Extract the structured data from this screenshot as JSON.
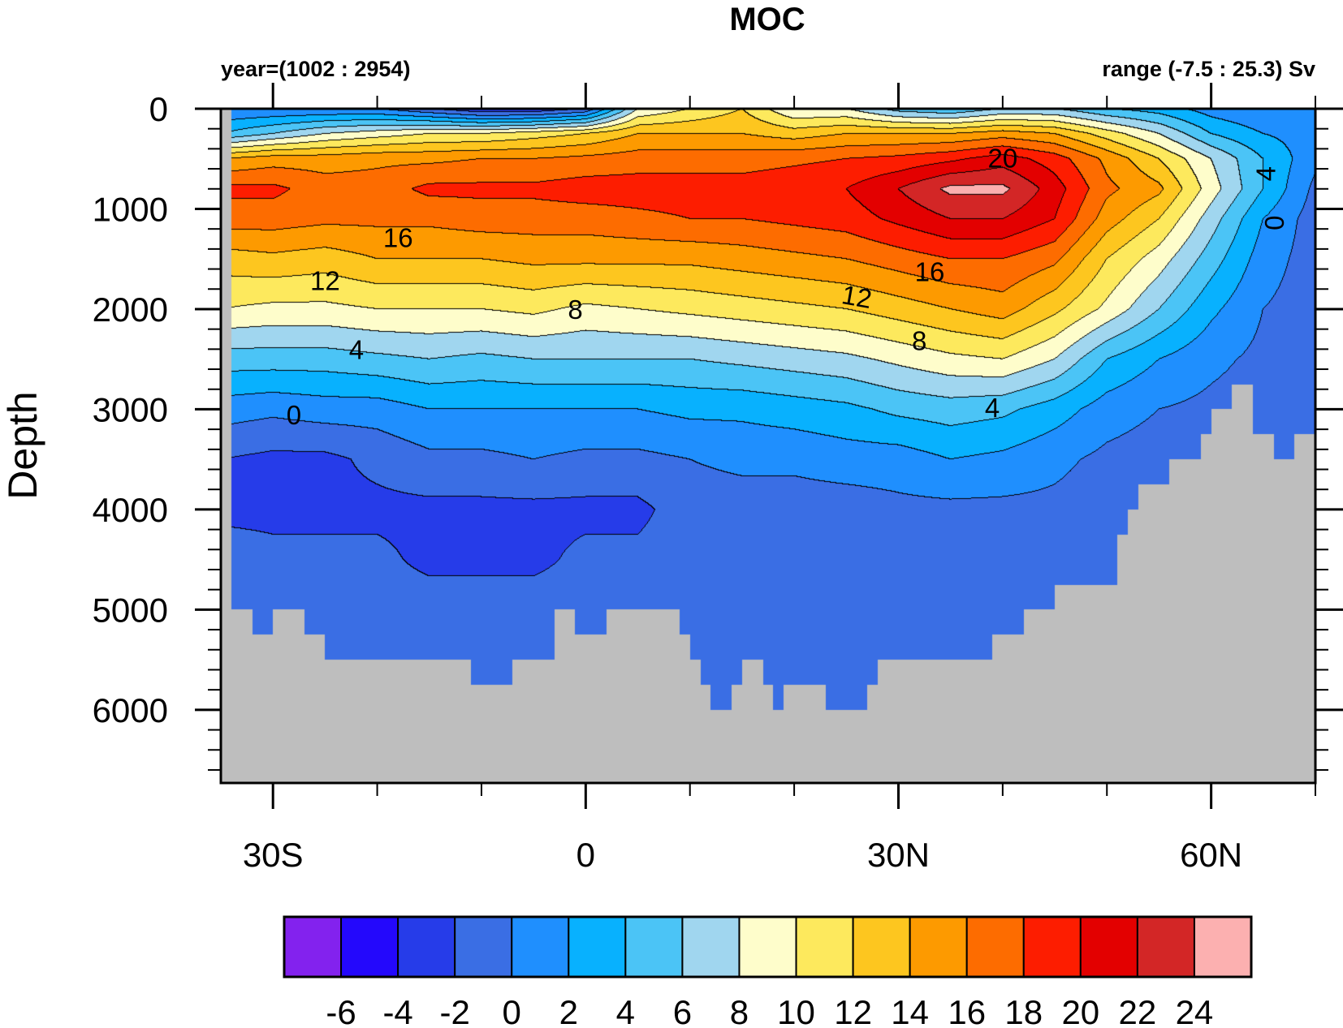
{
  "chart_data": {
    "type": "contour",
    "title": "MOC",
    "subtitle_left": "year=(1002 : 2954)",
    "subtitle_right": "range (-7.5 : 25.3) Sv",
    "xlabel": "",
    "ylabel": "Depth",
    "xlim": [
      -35,
      70
    ],
    "ylim": [
      0,
      6730
    ],
    "y_reversed": true,
    "x_ticks": [
      {
        "value": -30,
        "label": "30S"
      },
      {
        "value": 0,
        "label": "0"
      },
      {
        "value": 30,
        "label": "30N"
      },
      {
        "value": 60,
        "label": "60N"
      }
    ],
    "x_minor_step": 10,
    "y_ticks": [
      {
        "value": 0,
        "label": "0"
      },
      {
        "value": 1000,
        "label": "1000"
      },
      {
        "value": 2000,
        "label": "2000"
      },
      {
        "value": 3000,
        "label": "3000"
      },
      {
        "value": 4000,
        "label": "4000"
      },
      {
        "value": 5000,
        "label": "5000"
      },
      {
        "value": 6000,
        "label": "6000"
      }
    ],
    "y_minor_step": 200,
    "levels": [
      -6,
      -4,
      -2,
      0,
      2,
      4,
      6,
      8,
      10,
      12,
      14,
      16,
      18,
      20,
      22,
      24
    ],
    "level_labels": [
      "-6",
      "-4",
      "-2",
      "0",
      "2",
      "4",
      "6",
      "8",
      "10",
      "12",
      "14",
      "16",
      "18",
      "20",
      "22",
      "24"
    ],
    "colors": [
      "#8322ee",
      "#2408fc",
      "#263ce9",
      "#3a6ee4",
      "#1f8ffe",
      "#08b1fe",
      "#4bc4f6",
      "#a0d6ef",
      "#fefdcb",
      "#fde95d",
      "#fdc61f",
      "#fd9a00",
      "#fd6c00",
      "#fd1d00",
      "#e30000",
      "#d32626",
      "#fcb0b0"
    ],
    "land_color": "#bebebe",
    "lat": [
      -35,
      -30,
      -25,
      -20,
      -15,
      -10,
      -5,
      0,
      5,
      10,
      15,
      20,
      25,
      30,
      35,
      40,
      45,
      50,
      55,
      60,
      65,
      70
    ],
    "depth": [
      0,
      250,
      500,
      800,
      1100,
      1500,
      2000,
      2500,
      3000,
      3500,
      4000,
      4500,
      5000,
      6000
    ],
    "values": [
      [
        0,
        0,
        0,
        0,
        -2,
        -4,
        -4,
        -2,
        8,
        10,
        12,
        8,
        8,
        5,
        4,
        6,
        6,
        4,
        3,
        1,
        0,
        0
      ],
      [
        4,
        6,
        8,
        9,
        10,
        10,
        11,
        12,
        14,
        14,
        14,
        13,
        14,
        14,
        14,
        15,
        14,
        11,
        8,
        4,
        2,
        1
      ],
      [
        14,
        15,
        15,
        15.5,
        15.5,
        16,
        16,
        16.5,
        17,
        17,
        17,
        17.5,
        18,
        18.5,
        19.5,
        21,
        19,
        15.5,
        12,
        8,
        4,
        0.5
      ],
      [
        18.5,
        18.5,
        17,
        17,
        18.5,
        18.5,
        18.5,
        19,
        19,
        19,
        19,
        19.5,
        20,
        22,
        24.5,
        24.5,
        21,
        16.5,
        14.5,
        9,
        4,
        -0.5
      ],
      [
        17,
        17,
        16.5,
        16.5,
        16.5,
        17,
        17,
        17,
        17.5,
        18,
        18,
        18.5,
        19,
        20.5,
        22,
        22,
        20,
        15,
        12,
        7,
        2,
        -1
      ],
      [
        13,
        13.5,
        13,
        14,
        14,
        14,
        14.5,
        14.5,
        14.5,
        14.5,
        15,
        15.5,
        16,
        17,
        18,
        18,
        16.5,
        12,
        9,
        5,
        1,
        -1
      ],
      [
        10,
        9.5,
        9.5,
        10,
        10,
        10,
        10.5,
        9.5,
        10,
        10.5,
        11,
        11.5,
        12,
        13,
        14,
        15,
        12.5,
        9.5,
        6,
        2.5,
        0,
        -1
      ],
      [
        5,
        5,
        5,
        5.5,
        6,
        5.5,
        6,
        6,
        6,
        6,
        6.5,
        7,
        7.5,
        8.5,
        9.5,
        10,
        8,
        4,
        2,
        0.5,
        -0.5,
        -1
      ],
      [
        1,
        0.5,
        1,
        1,
        2,
        2,
        2,
        2,
        2,
        2.5,
        2.5,
        3,
        3.5,
        4.5,
        5,
        4.5,
        3,
        1,
        0,
        -0.5,
        -1,
        -1
      ],
      [
        -2,
        -2.5,
        -2.5,
        -1.5,
        -0.5,
        -0.5,
        0,
        -0.5,
        -0.5,
        0,
        0.5,
        0.5,
        1,
        1,
        2,
        1.5,
        0.5,
        -0.5,
        -1,
        -1,
        -1,
        -1
      ],
      [
        -2.5,
        -2.5,
        -2.5,
        -2.5,
        -2.5,
        -2.5,
        -2.5,
        -2.5,
        -2.5,
        -1,
        -1,
        -1,
        -1,
        -0.5,
        -0.5,
        -0.5,
        -0.5,
        -1,
        -1,
        -1,
        -1,
        -1
      ],
      [
        -1,
        -1.5,
        -1.5,
        -1.5,
        -2.5,
        -2.5,
        -2.5,
        -1.5,
        -1.5,
        -1,
        -1,
        -1,
        -1,
        -1,
        -1,
        -1,
        -1,
        -1,
        -1,
        -1,
        -1,
        -1
      ],
      [
        -1,
        -1,
        -1,
        -1,
        -1,
        -1,
        -1,
        -1,
        -1,
        -1,
        -1,
        -1,
        -1,
        -1,
        -1,
        -1,
        -1,
        -1,
        -1,
        -1,
        -1,
        -1
      ],
      [
        -1,
        -1,
        -1,
        -1,
        -1,
        -1,
        -1,
        -1,
        -1,
        -1,
        -1,
        -1,
        -1,
        -1,
        -1,
        -1,
        -1,
        -1,
        -1,
        -1,
        -1,
        -1
      ]
    ],
    "bathymetry": [
      [
        -35,
        -34,
        0
      ],
      [
        -34,
        -32,
        5000
      ],
      [
        -32,
        -30,
        5250
      ],
      [
        -30,
        -27,
        5000
      ],
      [
        -27,
        -25,
        5250
      ],
      [
        -25,
        -11,
        5500
      ],
      [
        -11,
        -7,
        5750
      ],
      [
        -7,
        -3,
        5500
      ],
      [
        -3,
        -1,
        5000
      ],
      [
        -1,
        2,
        5250
      ],
      [
        2,
        9,
        5000
      ],
      [
        9,
        10,
        5250
      ],
      [
        10,
        11,
        5500
      ],
      [
        11,
        12,
        5750
      ],
      [
        12,
        14,
        6000
      ],
      [
        14,
        15,
        5750
      ],
      [
        15,
        17,
        5500
      ],
      [
        17,
        18,
        5750
      ],
      [
        18,
        19,
        6000
      ],
      [
        19,
        23,
        5750
      ],
      [
        23,
        27,
        6000
      ],
      [
        27,
        28,
        5750
      ],
      [
        28,
        39,
        5500
      ],
      [
        39,
        42,
        5250
      ],
      [
        42,
        45,
        5000
      ],
      [
        45,
        51,
        4750
      ],
      [
        51,
        52,
        4250
      ],
      [
        52,
        53,
        4000
      ],
      [
        53,
        56,
        3750
      ],
      [
        56,
        59,
        3500
      ],
      [
        59,
        60,
        3250
      ],
      [
        60,
        62,
        3000
      ],
      [
        62,
        64,
        2750
      ],
      [
        64,
        66,
        3250
      ],
      [
        66,
        68,
        3500
      ],
      [
        68,
        70,
        3250
      ]
    ],
    "contour_labels": [
      {
        "text": "16",
        "lat": -18,
        "depth": 1290,
        "rotate": 0
      },
      {
        "text": "12",
        "lat": -25,
        "depth": 1720,
        "rotate": 0
      },
      {
        "text": "8",
        "lat": -1,
        "depth": 2010,
        "rotate": 0
      },
      {
        "text": "4",
        "lat": -22,
        "depth": 2410,
        "rotate": 0
      },
      {
        "text": "0",
        "lat": -28,
        "depth": 3060,
        "rotate": 0
      },
      {
        "text": "20",
        "lat": 40,
        "depth": 500,
        "rotate": 0
      },
      {
        "text": "16",
        "lat": 33,
        "depth": 1630,
        "rotate": 0
      },
      {
        "text": "12",
        "lat": 26,
        "depth": 1880,
        "rotate": 10
      },
      {
        "text": "8",
        "lat": 32,
        "depth": 2320,
        "rotate": 0
      },
      {
        "text": "4",
        "lat": 39,
        "depth": 2990,
        "rotate": 0
      },
      {
        "text": "4",
        "lat": 65.3,
        "depth": 650,
        "rotate": -90
      },
      {
        "text": "0",
        "lat": 66.1,
        "depth": 1140,
        "rotate": -90
      }
    ]
  }
}
